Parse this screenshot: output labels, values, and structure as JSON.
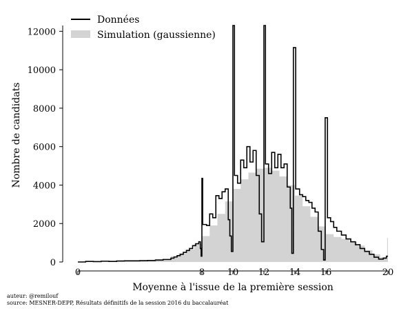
{
  "chart_data": {
    "type": "area",
    "title": "",
    "xlabel": "Moyenne à l'issue de la première session",
    "ylabel": "Nombre de candidats",
    "xlim": [
      0,
      20
    ],
    "ylim": [
      0,
      12300
    ],
    "x_ticks": [
      0,
      8,
      10,
      12,
      14,
      16,
      20
    ],
    "y_ticks": [
      0,
      2000,
      4000,
      6000,
      8000,
      10000,
      12000
    ],
    "legend_position": "top-left",
    "grid": false,
    "series": [
      {
        "name": "Données",
        "style": "step",
        "color": "#000000",
        "points": [
          [
            0.0,
            0
          ],
          [
            0.5,
            30
          ],
          [
            1.0,
            20
          ],
          [
            1.5,
            40
          ],
          [
            2.0,
            30
          ],
          [
            2.5,
            50
          ],
          [
            3.0,
            60
          ],
          [
            3.5,
            60
          ],
          [
            4.0,
            70
          ],
          [
            4.5,
            80
          ],
          [
            5.0,
            100
          ],
          [
            5.5,
            130
          ],
          [
            6.0,
            200
          ],
          [
            6.2,
            260
          ],
          [
            6.4,
            330
          ],
          [
            6.6,
            400
          ],
          [
            6.8,
            500
          ],
          [
            7.0,
            600
          ],
          [
            7.2,
            700
          ],
          [
            7.4,
            850
          ],
          [
            7.6,
            950
          ],
          [
            7.8,
            1050
          ],
          [
            7.9,
            700
          ],
          [
            7.95,
            300
          ],
          [
            8.0,
            4350
          ],
          [
            8.05,
            1950
          ],
          [
            8.3,
            1900
          ],
          [
            8.5,
            2500
          ],
          [
            8.7,
            2300
          ],
          [
            8.9,
            3450
          ],
          [
            9.1,
            3300
          ],
          [
            9.3,
            3650
          ],
          [
            9.5,
            3800
          ],
          [
            9.7,
            2200
          ],
          [
            9.8,
            1350
          ],
          [
            9.9,
            550
          ],
          [
            10.0,
            12300
          ],
          [
            10.1,
            4500
          ],
          [
            10.3,
            4100
          ],
          [
            10.5,
            5300
          ],
          [
            10.7,
            4900
          ],
          [
            10.9,
            6000
          ],
          [
            11.1,
            5200
          ],
          [
            11.3,
            5800
          ],
          [
            11.5,
            4500
          ],
          [
            11.7,
            2500
          ],
          [
            11.85,
            1050
          ],
          [
            12.0,
            12300
          ],
          [
            12.1,
            5100
          ],
          [
            12.3,
            4600
          ],
          [
            12.5,
            5700
          ],
          [
            12.7,
            4900
          ],
          [
            12.9,
            5600
          ],
          [
            13.1,
            4900
          ],
          [
            13.3,
            5100
          ],
          [
            13.5,
            3900
          ],
          [
            13.7,
            2800
          ],
          [
            13.8,
            450
          ],
          [
            13.9,
            11150
          ],
          [
            14.05,
            3800
          ],
          [
            14.3,
            3500
          ],
          [
            14.5,
            3400
          ],
          [
            14.7,
            3200
          ],
          [
            14.9,
            3100
          ],
          [
            15.1,
            2800
          ],
          [
            15.3,
            2600
          ],
          [
            15.5,
            1600
          ],
          [
            15.7,
            650
          ],
          [
            15.85,
            100
          ],
          [
            15.95,
            7500
          ],
          [
            16.1,
            2300
          ],
          [
            16.3,
            2100
          ],
          [
            16.5,
            1800
          ],
          [
            16.7,
            1600
          ],
          [
            17.0,
            1400
          ],
          [
            17.3,
            1200
          ],
          [
            17.6,
            1050
          ],
          [
            17.9,
            900
          ],
          [
            18.2,
            700
          ],
          [
            18.5,
            550
          ],
          [
            18.8,
            400
          ],
          [
            19.1,
            250
          ],
          [
            19.4,
            150
          ],
          [
            19.7,
            200
          ],
          [
            19.9,
            300
          ]
        ]
      },
      {
        "name": "Simulation (gaussienne)",
        "style": "filled",
        "color": "#d3d3d3",
        "points": [
          [
            0.0,
            0
          ],
          [
            1.0,
            10
          ],
          [
            2.0,
            20
          ],
          [
            3.0,
            40
          ],
          [
            4.0,
            80
          ],
          [
            5.0,
            150
          ],
          [
            6.0,
            300
          ],
          [
            6.5,
            450
          ],
          [
            7.0,
            650
          ],
          [
            7.5,
            950
          ],
          [
            8.0,
            1350
          ],
          [
            8.5,
            1900
          ],
          [
            9.0,
            2500
          ],
          [
            9.5,
            3150
          ],
          [
            10.0,
            3800
          ],
          [
            10.5,
            4300
          ],
          [
            11.0,
            4650
          ],
          [
            11.5,
            4850
          ],
          [
            12.0,
            4900
          ],
          [
            12.5,
            4750
          ],
          [
            13.0,
            4450
          ],
          [
            13.5,
            4000
          ],
          [
            14.0,
            3450
          ],
          [
            14.5,
            2900
          ],
          [
            15.0,
            2350
          ],
          [
            15.5,
            1850
          ],
          [
            16.0,
            1450
          ],
          [
            16.5,
            1300
          ],
          [
            17.0,
            1200
          ],
          [
            17.5,
            1050
          ],
          [
            18.0,
            850
          ],
          [
            18.5,
            600
          ],
          [
            19.0,
            400
          ],
          [
            19.5,
            250
          ],
          [
            19.95,
            1250
          ]
        ]
      }
    ]
  },
  "credits": {
    "author": "auteur: @remilouf",
    "source": "source: MESNER-DEPP, Résultats définitifs de la session 2016 du baccalauréat"
  }
}
